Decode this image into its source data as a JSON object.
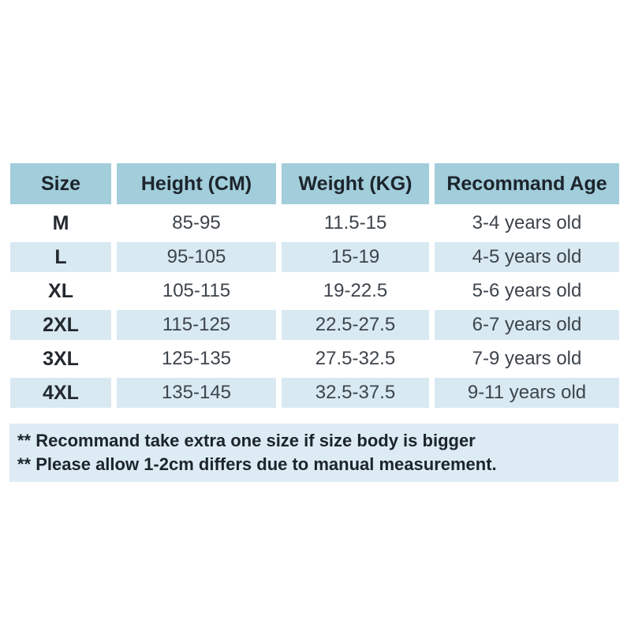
{
  "chart_data": {
    "type": "table",
    "columns": [
      "Size",
      "Height (CM)",
      "Weight (KG)",
      "Recommand Age"
    ],
    "rows": [
      [
        "M",
        "85-95",
        "11.5-15",
        "3-4 years old"
      ],
      [
        "L",
        "95-105",
        "15-19",
        "4-5 years old"
      ],
      [
        "XL",
        "105-115",
        "19-22.5",
        "5-6 years old"
      ],
      [
        "2XL",
        "115-125",
        "22.5-27.5",
        "6-7 years old"
      ],
      [
        "3XL",
        "125-135",
        "27.5-32.5",
        "7-9 years old"
      ],
      [
        "4XL",
        "135-145",
        "32.5-37.5",
        "9-11 years old"
      ]
    ]
  },
  "notes": [
    "** Recommand take extra one size if size body is bigger",
    "** Please allow 1-2cm differs due to manual measurement."
  ],
  "colors": {
    "header_bg": "#a2cdda",
    "row_alt_bg": "#d8e9f2",
    "note_band_bg": "#dcebf4",
    "header_text": "#1c242c",
    "value_text": "#3d444c",
    "background": "#ffffff"
  }
}
